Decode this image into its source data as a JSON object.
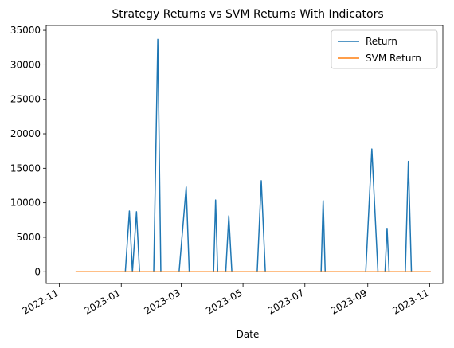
{
  "chart_data": {
    "type": "line",
    "title": "Strategy Returns vs SVM Returns With Indicators",
    "xlabel": "Date",
    "ylabel": "",
    "xlim": [
      "2022-10-19",
      "2023-11-14"
    ],
    "ylim": [
      -1700,
      35700
    ],
    "x_ticks": [
      "2022-11",
      "2023-01",
      "2023-03",
      "2023-05",
      "2023-07",
      "2023-09",
      "2023-11"
    ],
    "y_ticks": [
      0,
      5000,
      10000,
      15000,
      20000,
      25000,
      30000,
      35000
    ],
    "grid": false,
    "legend_position": "top-right",
    "series": [
      {
        "name": "Return",
        "color": "#1f77b4",
        "x": [
          "2022-11-17",
          "2023-01-05",
          "2023-01-09",
          "2023-01-12",
          "2023-01-16",
          "2023-01-19",
          "2023-02-02",
          "2023-02-06",
          "2023-02-09",
          "2023-02-27",
          "2023-03-06",
          "2023-03-09",
          "2023-04-02",
          "2023-04-04",
          "2023-04-06",
          "2023-04-14",
          "2023-04-17",
          "2023-04-20",
          "2023-05-15",
          "2023-05-19",
          "2023-05-23",
          "2023-07-17",
          "2023-07-19",
          "2023-07-21",
          "2023-08-30",
          "2023-09-05",
          "2023-09-11",
          "2023-09-18",
          "2023-09-20",
          "2023-09-22",
          "2023-10-08",
          "2023-10-11",
          "2023-10-14",
          "2023-11-02"
        ],
        "values": [
          0,
          0,
          8800,
          0,
          8700,
          0,
          0,
          33700,
          0,
          0,
          12300,
          0,
          0,
          10400,
          0,
          0,
          8100,
          0,
          0,
          13200,
          0,
          0,
          10300,
          0,
          0,
          17800,
          0,
          0,
          6300,
          0,
          0,
          16000,
          0,
          0
        ]
      },
      {
        "name": "SVM Return",
        "color": "#ff7f0e",
        "x": [
          "2022-11-17",
          "2023-11-02"
        ],
        "values": [
          0,
          0
        ]
      }
    ]
  }
}
